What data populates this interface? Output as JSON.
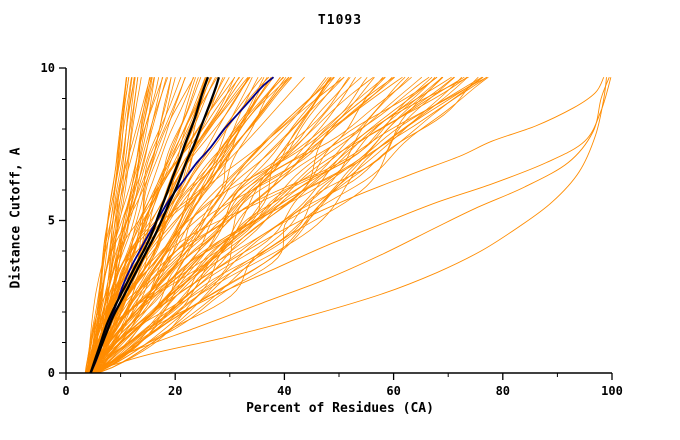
{
  "chart_data": {
    "type": "line",
    "title": "T1093",
    "xlabel": "Percent of Residues (CA)",
    "ylabel": "Distance Cutoff, A",
    "xlim": [
      0,
      100
    ],
    "ylim": [
      0,
      10
    ],
    "x_major_ticks": [
      0,
      20,
      40,
      60,
      80,
      100
    ],
    "x_minor_step": 10,
    "y_major_ticks": [
      0,
      5,
      10
    ],
    "y_minor_step": 1,
    "grid": false,
    "legend": "none",
    "curve_top_distance": 9.7,
    "colors": {
      "orange": "#FF8C00",
      "black": "#000000",
      "blue": "#00008B",
      "axis": "#000000",
      "background": "#FFFFFF"
    },
    "series": [
      {
        "name": "orange-right-1",
        "color": "orange",
        "width": 0.9,
        "points": [
          [
            4,
            0
          ],
          [
            15,
            0.6
          ],
          [
            30,
            1.2
          ],
          [
            45,
            1.9
          ],
          [
            58,
            2.6
          ],
          [
            68,
            3.3
          ],
          [
            76,
            4.0
          ],
          [
            83,
            4.8
          ],
          [
            89,
            5.6
          ],
          [
            94,
            6.6
          ],
          [
            97,
            7.8
          ],
          [
            98.5,
            9.0
          ],
          [
            99,
            9.7
          ]
        ]
      },
      {
        "name": "orange-right-2",
        "color": "orange",
        "width": 0.9,
        "points": [
          [
            4.5,
            0
          ],
          [
            12,
            0.7
          ],
          [
            24,
            1.5
          ],
          [
            36,
            2.3
          ],
          [
            48,
            3.1
          ],
          [
            58,
            3.9
          ],
          [
            67,
            4.7
          ],
          [
            75,
            5.4
          ],
          [
            84,
            6.1
          ],
          [
            92,
            6.9
          ],
          [
            96.5,
            7.9
          ],
          [
            98,
            9.0
          ],
          [
            99.5,
            9.7
          ]
        ]
      },
      {
        "name": "orange-right-3",
        "color": "orange",
        "width": 0.9,
        "points": [
          [
            4,
            0
          ],
          [
            10,
            0.8
          ],
          [
            18,
            1.7
          ],
          [
            28,
            2.6
          ],
          [
            38,
            3.4
          ],
          [
            48,
            4.2
          ],
          [
            58,
            4.9
          ],
          [
            68,
            5.6
          ],
          [
            78,
            6.2
          ],
          [
            88,
            6.9
          ],
          [
            95,
            7.6
          ],
          [
            98,
            8.6
          ],
          [
            99.8,
            9.7
          ]
        ]
      },
      {
        "name": "orange-right-4",
        "color": "orange",
        "width": 0.9,
        "points": [
          [
            4,
            0
          ],
          [
            9,
            1.0
          ],
          [
            16,
            2.0
          ],
          [
            24,
            3.0
          ],
          [
            33,
            4.0
          ],
          [
            43,
            5.0
          ],
          [
            53,
            5.8
          ],
          [
            63,
            6.5
          ],
          [
            72,
            7.1
          ],
          [
            78,
            7.6
          ],
          [
            86,
            8.1
          ],
          [
            93,
            8.7
          ],
          [
            97,
            9.2
          ],
          [
            98.5,
            9.7
          ]
        ]
      },
      {
        "name": "blue-model",
        "color": "blue",
        "width": 1.8,
        "points": [
          [
            4.5,
            0
          ],
          [
            5.5,
            0.4
          ],
          [
            6.5,
            0.9
          ],
          [
            7.5,
            1.4
          ],
          [
            8.5,
            1.9
          ],
          [
            9.5,
            2.4
          ],
          [
            10.5,
            2.9
          ],
          [
            12,
            3.5
          ],
          [
            13.5,
            4.0
          ],
          [
            15,
            4.5
          ],
          [
            17,
            5.1
          ],
          [
            19,
            5.7
          ],
          [
            21.5,
            6.3
          ],
          [
            24,
            6.9
          ],
          [
            26.5,
            7.4
          ],
          [
            29,
            8.0
          ],
          [
            31.5,
            8.5
          ],
          [
            34,
            9.0
          ],
          [
            36,
            9.4
          ],
          [
            38,
            9.7
          ]
        ]
      },
      {
        "name": "black-model-1",
        "color": "black",
        "width": 2.3,
        "points": [
          [
            4.5,
            0
          ],
          [
            6,
            0.8
          ],
          [
            7.5,
            1.6
          ],
          [
            9,
            2.2
          ],
          [
            11,
            2.9
          ],
          [
            13,
            3.6
          ],
          [
            14.5,
            4.1
          ],
          [
            16,
            4.7
          ],
          [
            17,
            5.2
          ],
          [
            18.5,
            5.9
          ],
          [
            19.5,
            6.4
          ],
          [
            21,
            7.1
          ],
          [
            22,
            7.6
          ],
          [
            23.5,
            8.3
          ],
          [
            24.5,
            8.9
          ],
          [
            25.2,
            9.3
          ],
          [
            26,
            9.7
          ]
        ]
      },
      {
        "name": "black-model-2",
        "color": "black",
        "width": 2.3,
        "points": [
          [
            4.5,
            0
          ],
          [
            6.5,
            0.9
          ],
          [
            8.5,
            1.8
          ],
          [
            10.5,
            2.5
          ],
          [
            12.5,
            3.2
          ],
          [
            14.5,
            3.9
          ],
          [
            16.5,
            4.6
          ],
          [
            17.5,
            5.0
          ],
          [
            19,
            5.6
          ],
          [
            20.5,
            6.2
          ],
          [
            22,
            6.9
          ],
          [
            23.5,
            7.5
          ],
          [
            25,
            8.2
          ],
          [
            26.5,
            8.9
          ],
          [
            27.5,
            9.4
          ],
          [
            28,
            9.7
          ]
        ]
      }
    ],
    "orange_fan": {
      "count": 128,
      "seed": 1093,
      "color": "orange",
      "width": 0.8,
      "start_percent_range": [
        3.5,
        6
      ],
      "top_percent_range": [
        11,
        78
      ],
      "shape_exponent_range": [
        0.75,
        1.55
      ],
      "wiggle_fraction": 0.05
    }
  }
}
